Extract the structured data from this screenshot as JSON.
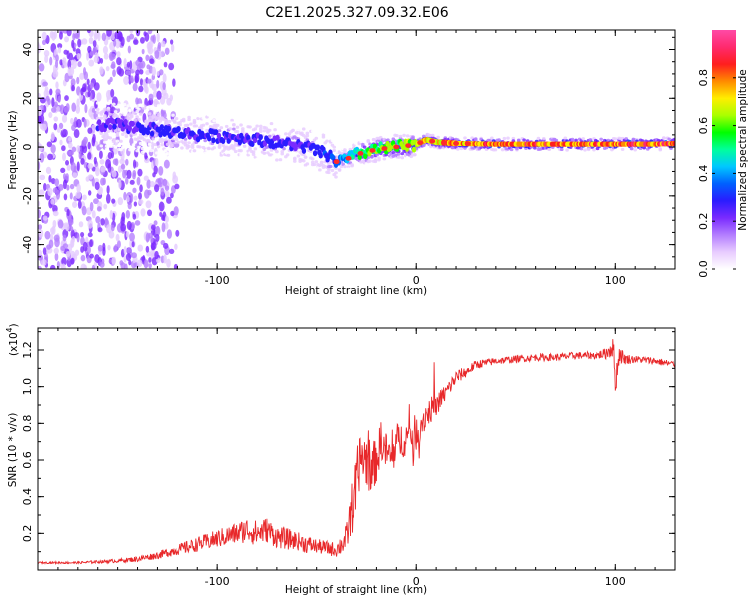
{
  "title": "C2E1.2025.327.09.32.E06",
  "chart_data": [
    {
      "type": "heatmap",
      "title": "C2E1.2025.327.09.32.E06",
      "xlabel": "Height of straight line (km)",
      "ylabel": "Frequency (Hz)",
      "xlim": [
        -190,
        130
      ],
      "ylim": [
        -50,
        48
      ],
      "x_ticks": [
        -100,
        0,
        100
      ],
      "x_tick_labels": [
        "-100",
        "0",
        "100"
      ],
      "y_ticks": [
        -40,
        -20,
        0,
        20,
        40
      ],
      "y_tick_labels": [
        "-40",
        "-20",
        "0",
        "20",
        "40"
      ],
      "colorbar": {
        "label": "Normalized spectral amplitude",
        "range": [
          0,
          1
        ],
        "ticks": [
          0.0,
          0.2,
          0.4,
          0.6,
          0.8
        ],
        "tick_labels": [
          "0.0",
          "0.2",
          "0.4",
          "0.6",
          "0.8"
        ],
        "colors": [
          "#ffffff",
          "#e8ccff",
          "#b37dff",
          "#7a2bff",
          "#2a1cff",
          "#0060ff",
          "#00c8ff",
          "#00ff9c",
          "#00ff00",
          "#aaff00",
          "#ffee00",
          "#ff8a00",
          "#ff1e1e",
          "#ff2a6e",
          "#ff4aa6"
        ]
      },
      "ridge": {
        "x": [
          -150,
          -130,
          -110,
          -90,
          -70,
          -55,
          -45,
          -40,
          -35,
          -30,
          -25,
          -20,
          -10,
          0,
          5,
          10,
          20,
          40,
          60,
          80,
          95,
          100,
          110,
          120,
          130
        ],
        "freq": [
          9,
          7,
          5,
          4,
          2,
          0,
          -3,
          -6,
          -5,
          -3,
          -2,
          -1,
          0,
          1,
          3,
          2,
          1.5,
          1.2,
          1.2,
          1.2,
          1.2,
          1.2,
          1.2,
          1.2,
          1.5
        ],
        "amplitude": [
          0.3,
          0.35,
          0.35,
          0.35,
          0.35,
          0.35,
          0.4,
          0.45,
          0.5,
          0.6,
          0.65,
          0.7,
          0.75,
          0.8,
          0.85,
          0.88,
          0.9,
          0.95,
          0.95,
          0.95,
          0.95,
          0.95,
          0.95,
          0.95,
          0.95
        ]
      }
    },
    {
      "type": "line",
      "xlabel": "Height of straight line (km)",
      "ylabel": "SNR (10 * v/v)",
      "y_multiplier": "(x10",
      "y_multiplier_exp": "4",
      "y_multiplier_close": ")",
      "xlim": [
        -190,
        130
      ],
      "ylim": [
        0,
        1.32
      ],
      "x_ticks": [
        -100,
        0,
        100
      ],
      "x_tick_labels": [
        "-100",
        "0",
        "100"
      ],
      "y_ticks": [
        0.2,
        0.4,
        0.6,
        0.8,
        1.0,
        1.2
      ],
      "y_tick_labels": [
        "0.2",
        "0.4",
        "0.6",
        "0.8",
        "1.0",
        "1.2"
      ],
      "line_color": "#e8282a",
      "series": [
        {
          "name": "SNR",
          "x": [
            -190,
            -170,
            -150,
            -140,
            -130,
            -120,
            -110,
            -100,
            -90,
            -85,
            -80,
            -75,
            -70,
            -65,
            -60,
            -55,
            -50,
            -45,
            -40,
            -35,
            -32,
            -30,
            -28,
            -25,
            -22,
            -20,
            -18,
            -15,
            -12,
            -10,
            -5,
            0,
            5,
            10,
            15,
            20,
            25,
            30,
            40,
            50,
            60,
            70,
            80,
            90,
            95,
            97,
            99,
            100,
            102,
            105,
            110,
            120,
            130
          ],
          "y": [
            0.04,
            0.04,
            0.05,
            0.06,
            0.08,
            0.11,
            0.14,
            0.17,
            0.2,
            0.22,
            0.2,
            0.22,
            0.18,
            0.17,
            0.16,
            0.14,
            0.13,
            0.12,
            0.11,
            0.17,
            0.35,
            0.5,
            0.62,
            0.6,
            0.55,
            0.6,
            0.68,
            0.65,
            0.6,
            0.7,
            0.72,
            0.75,
            0.85,
            0.9,
            0.97,
            1.05,
            1.08,
            1.12,
            1.14,
            1.15,
            1.16,
            1.16,
            1.17,
            1.17,
            1.18,
            1.2,
            1.22,
            1.02,
            1.18,
            1.15,
            1.15,
            1.14,
            1.12
          ],
          "noise": [
            0.005,
            0.006,
            0.01,
            0.015,
            0.02,
            0.03,
            0.04,
            0.05,
            0.06,
            0.07,
            0.07,
            0.07,
            0.06,
            0.06,
            0.05,
            0.05,
            0.04,
            0.04,
            0.04,
            0.08,
            0.15,
            0.15,
            0.15,
            0.15,
            0.15,
            0.12,
            0.12,
            0.1,
            0.1,
            0.1,
            0.1,
            0.1,
            0.08,
            0.06,
            0.05,
            0.04,
            0.03,
            0.025,
            0.02,
            0.02,
            0.02,
            0.02,
            0.02,
            0.02,
            0.03,
            0.05,
            0.06,
            0.08,
            0.05,
            0.03,
            0.02,
            0.02,
            0.02
          ]
        }
      ]
    }
  ]
}
